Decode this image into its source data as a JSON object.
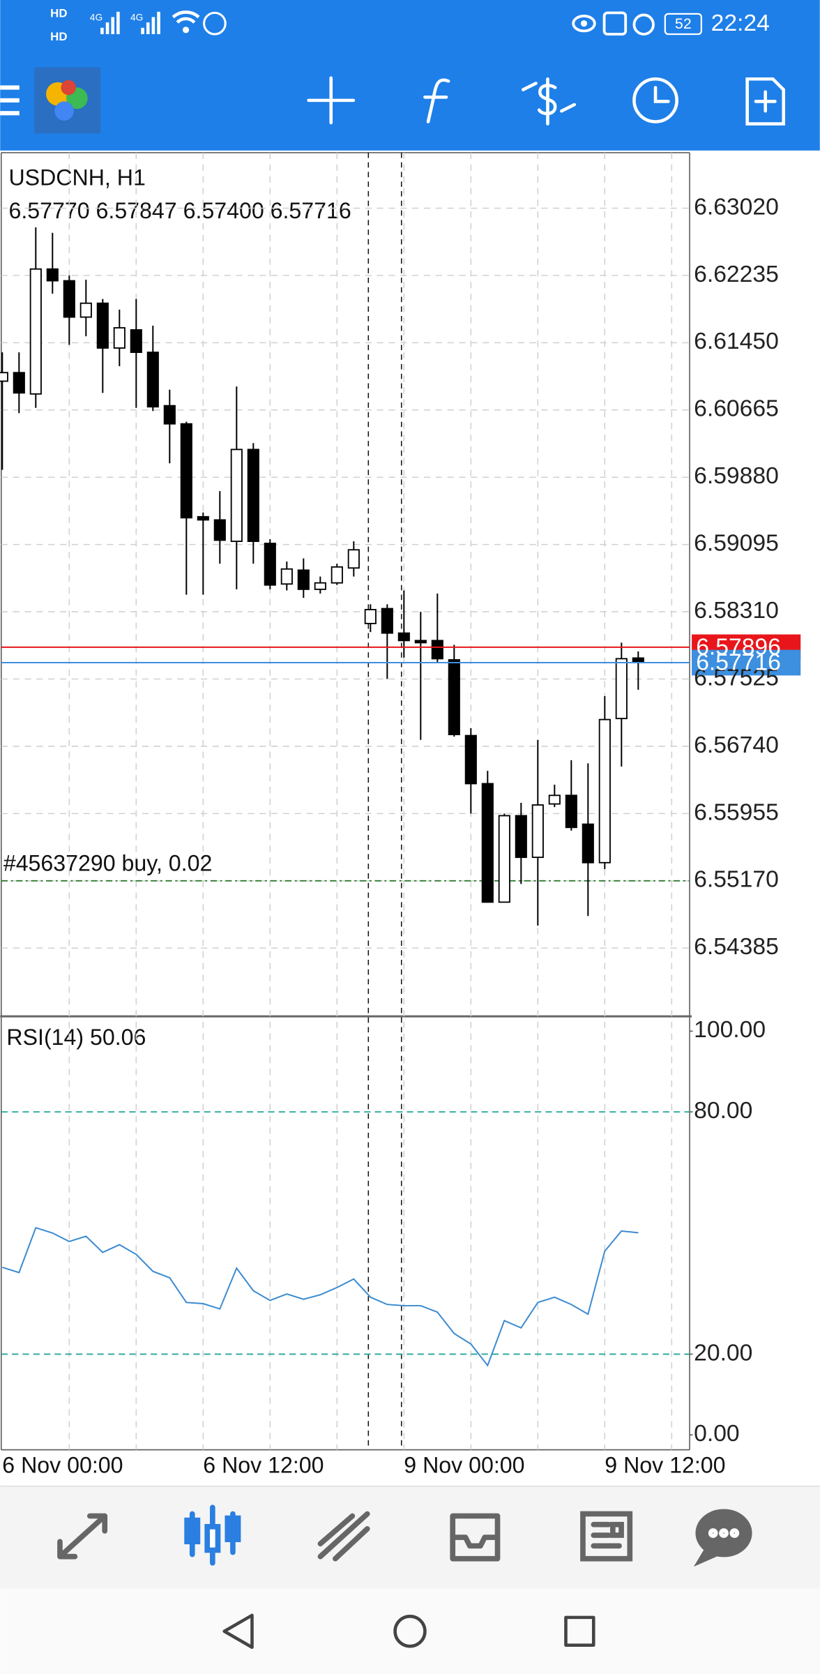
{
  "status_bar": {
    "indicators": [
      "HD",
      "HD",
      "4G",
      "4G"
    ],
    "battery": "52",
    "time": "22:24"
  },
  "chart_data": [
    {
      "type": "candlestick",
      "title": "USDCNH, H1",
      "subtitle": "6.57770 6.57847 6.57400 6.57716",
      "open": [
        6.61001,
        6.61101,
        6.60852,
        6.6231,
        6.62173,
        6.61749,
        6.61911,
        6.61388,
        6.616,
        6.61338,
        6.60715,
        6.60503,
        6.59419,
        6.59382,
        6.59132,
        6.60204,
        6.59108,
        6.58634,
        6.58796,
        6.58572,
        6.58647,
        6.58821,
        6.58173,
        6.58347,
        6.58061,
        6.57974,
        6.57974,
        6.57749,
        6.56865,
        6.56304,
        6.54921,
        6.5593,
        6.55444,
        6.56067,
        6.56167,
        6.55831,
        6.55382,
        6.57064,
        6.5777
      ],
      "high": [
        6.61338,
        6.61338,
        6.62796,
        6.62733,
        6.62235,
        6.62185,
        6.61961,
        6.61836,
        6.61961,
        6.61649,
        6.60902,
        6.60528,
        6.59469,
        6.59718,
        6.60939,
        6.60279,
        6.59157,
        6.58896,
        6.58933,
        6.58721,
        6.58871,
        6.59132,
        6.58397,
        6.58397,
        6.58559,
        6.5831,
        6.58522,
        6.57924,
        6.56952,
        6.56454,
        6.55955,
        6.5608,
        6.56815,
        6.56292,
        6.56578,
        6.56541,
        6.57326,
        6.57949,
        6.57847
      ],
      "low": [
        6.59967,
        6.60628,
        6.6069,
        6.62023,
        6.61425,
        6.61525,
        6.60864,
        6.61176,
        6.6069,
        6.60653,
        6.60042,
        6.58509,
        6.58509,
        6.58871,
        6.58572,
        6.58871,
        6.58572,
        6.58559,
        6.58472,
        6.58522,
        6.58622,
        6.58721,
        6.58073,
        6.57525,
        6.57774,
        6.56815,
        6.57724,
        6.56852,
        6.55955,
        6.54921,
        6.54921,
        6.55133,
        6.54647,
        6.5603,
        6.55756,
        6.54759,
        6.55307,
        6.56503,
        6.574
      ],
      "close": [
        6.61101,
        6.60864,
        6.6231,
        6.62173,
        6.61749,
        6.61911,
        6.61388,
        6.61624,
        6.61338,
        6.60702,
        6.60503,
        6.59407,
        6.59382,
        6.59145,
        6.60204,
        6.59132,
        6.58622,
        6.58809,
        6.58572,
        6.58647,
        6.58833,
        6.59033,
        6.58335,
        6.58061,
        6.57974,
        6.57949,
        6.57762,
        6.56877,
        6.56304,
        6.54921,
        6.5593,
        6.55444,
        6.56055,
        6.56167,
        6.55793,
        6.55382,
        6.57052,
        6.57762,
        6.57716
      ],
      "up_color": "#ffffff",
      "down_color": "#000000",
      "ylim": [
        6.53588,
        6.63668
      ],
      "yticks": [
        {
          "value": 6.6302,
          "label": "6.63020"
        },
        6.62235,
        {
          "value": 6.6145,
          "label": "6.61450"
        },
        6.60665,
        {
          "value": 6.5988,
          "label": "6.59880"
        },
        6.59095,
        {
          "value": 6.5831,
          "label": "6.58310"
        },
        6.57525,
        {
          "value": 6.5674,
          "label": "6.56740"
        },
        6.55955,
        {
          "value": 6.5517,
          "label": "6.55170"
        },
        6.54385
      ],
      "grid": true,
      "price_lines": [
        {
          "value": 6.57896,
          "color": "#e8161b"
        },
        {
          "value": 6.57716,
          "color": "#3d8fe0"
        }
      ],
      "order_line": {
        "value": 6.5517,
        "label": "#45637290 buy, 0.02",
        "color": "#2e7d32"
      }
    },
    {
      "type": "line",
      "title": "RSI(14) 50.06",
      "color": "#3a8ad0",
      "categories": [
        "6 Nov 00:00",
        null,
        null,
        null,
        null,
        null,
        null,
        null,
        null,
        null,
        null,
        null,
        "6 Nov 12:00",
        null,
        null,
        null,
        null,
        null,
        null,
        null,
        null,
        null,
        null,
        null,
        "9 Nov 00:00",
        null,
        null,
        null,
        null,
        null,
        null,
        null,
        null,
        null,
        null,
        null,
        "9 Nov 12:00",
        null,
        null
      ],
      "values": [
        41.5,
        40.2,
        51.3,
        50.0,
        47.9,
        49.2,
        45.2,
        47.1,
        44.7,
        40.5,
        38.9,
        32.8,
        32.5,
        31.2,
        41.3,
        35.7,
        33.3,
        34.9,
        33.6,
        34.7,
        36.5,
        38.6,
        34.1,
        32.3,
        32.0,
        32.0,
        30.4,
        25.1,
        22.5,
        17.2,
        28.3,
        26.5,
        32.8,
        34.1,
        32.3,
        29.9,
        45.5,
        50.5,
        50.06
      ],
      "ylim": [
        -3.7,
        103.4
      ],
      "yticks": [
        {
          "value": 100,
          "label": "100.00"
        },
        {
          "value": 80,
          "label": "80.00"
        },
        {
          "value": 20,
          "label": "20.00"
        },
        {
          "value": 0,
          "label": "0.00"
        }
      ],
      "levels": [
        80,
        20
      ],
      "level_color": "#26a69a"
    }
  ]
}
